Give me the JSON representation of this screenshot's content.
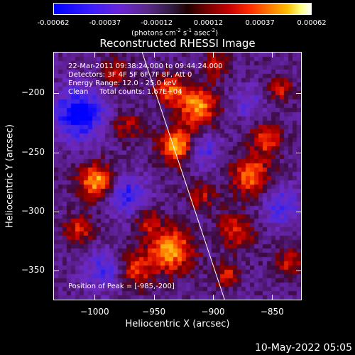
{
  "colorbar": {
    "tick_labels": [
      "-0.00062",
      "-0.00037",
      "-0.00012",
      "0.00012",
      "0.00037",
      "0.00062"
    ],
    "unit_prefix": "(photons cm",
    "unit_exp1": "-2",
    "unit_mid1": " s",
    "unit_exp2": "-1",
    "unit_mid2": " asec",
    "unit_exp3": "-2",
    "unit_suffix": ")"
  },
  "title": "Reconstructed RHESSI Image",
  "info": {
    "line1": "22-Mar-2011 09:38:24.000 to 09:44:24.000",
    "line2": "Detectors: 3F 4F 5F 6F 7F 8F, Att 0",
    "line3": "Energy Range: 12.0 - 25.0 keV",
    "line4": "Clean     Total counts: 1.67E+04"
  },
  "peak": "Position of Peak = [-985,-200]",
  "axes": {
    "xlabel": "Heliocentric X (arcsec)",
    "ylabel": "Heliocentric Y (arcsec)",
    "xticks": [
      "-1000",
      "-950",
      "-900",
      "-850"
    ],
    "yticks": [
      "-200",
      "-250",
      "-300",
      "-350"
    ],
    "xlim": [
      -1035,
      -825
    ],
    "ylim": [
      -375,
      -165
    ]
  },
  "footer_date": "10-May-2022 05:05",
  "colors": {
    "background": "#000000",
    "frame": "#ffffff",
    "limb_line": "#ffffff"
  },
  "chart_data": {
    "type": "heatmap",
    "title": "Reconstructed RHESSI Image",
    "xlabel": "Heliocentric X (arcsec)",
    "ylabel": "Heliocentric Y (arcsec)",
    "xlim": [
      -1035,
      -825
    ],
    "ylim": [
      -375,
      -165
    ],
    "color_range": [
      -0.00062,
      0.00062
    ],
    "peak_position": [
      -985,
      -200
    ],
    "limb_line": {
      "x": [
        -960,
        -890
      ],
      "y": [
        -165,
        -375
      ]
    }
  }
}
